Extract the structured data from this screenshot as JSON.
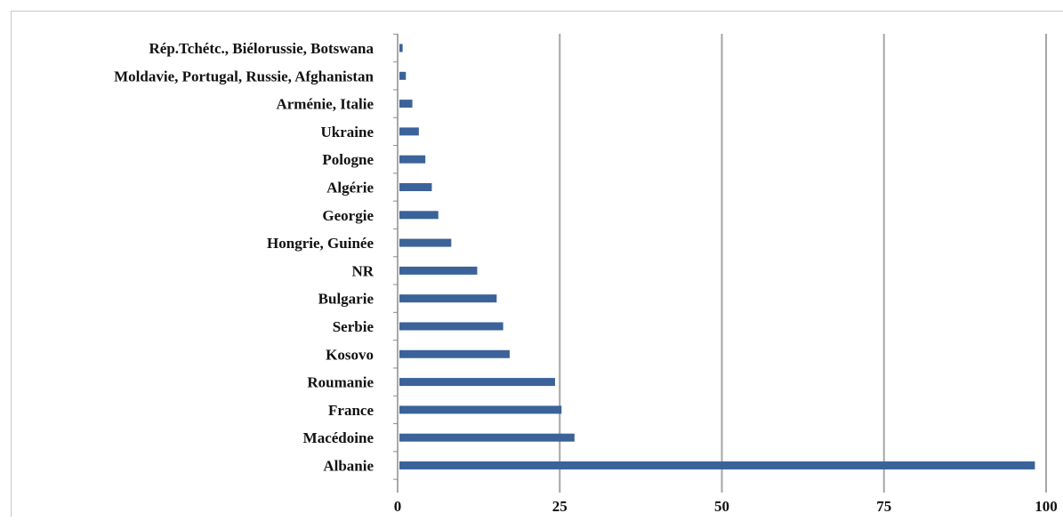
{
  "chart_data": {
    "type": "bar",
    "orientation": "horizontal",
    "categories": [
      "Rép.Tchétc., Biélorussie, Botswana",
      "Moldavie, Portugal, Russie, Afghanistan",
      "Arménie, Italie",
      "Ukraine",
      "Pologne",
      "Algérie",
      "Georgie",
      "Hongrie, Guinée",
      "NR",
      "Bulgarie",
      "Serbie",
      "Kosovo",
      "Roumanie",
      "France",
      "Macédoine",
      "Albanie"
    ],
    "values": [
      0.5,
      1,
      2,
      3,
      4,
      5,
      6,
      8,
      12,
      15,
      16,
      17,
      24,
      25,
      27,
      98
    ],
    "xlim": [
      0,
      100
    ],
    "x_ticks": [
      "0",
      "25",
      "50",
      "75",
      "100"
    ],
    "title": "",
    "xlabel": "",
    "ylabel": "",
    "grid": "vertical",
    "legend": "none",
    "bar_color": "#3b6399",
    "grid_color": "#a6a6a6"
  }
}
